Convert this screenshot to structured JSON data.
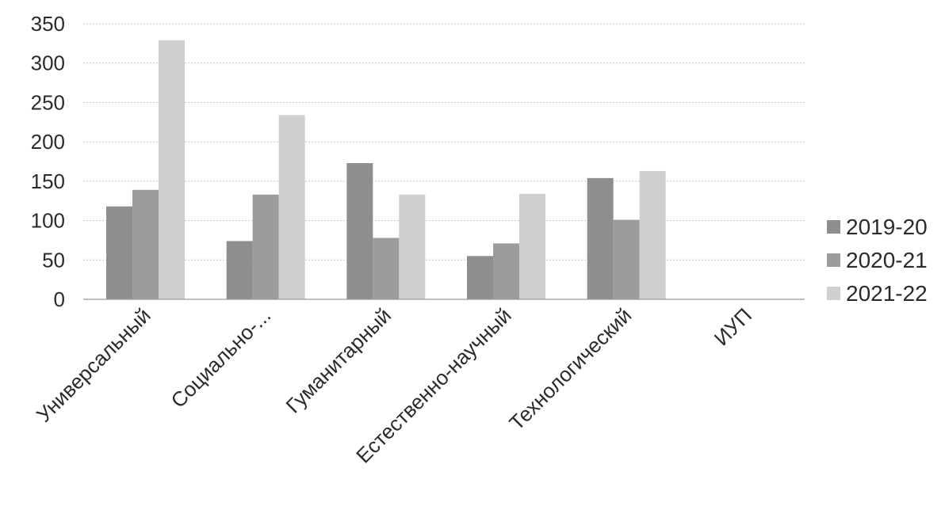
{
  "chart_data": {
    "type": "bar",
    "categories": [
      "Универсальный",
      "Социально-...",
      "Гуманитарный",
      "Естественно-научный",
      "Технологический",
      "ИУП"
    ],
    "series": [
      {
        "name": "2019-20",
        "values": [
          118,
          74,
          173,
          55,
          154,
          0
        ],
        "color": "#8e8e8e"
      },
      {
        "name": "2020-21",
        "values": [
          139,
          133,
          78,
          71,
          101,
          0
        ],
        "color": "#9c9c9c"
      },
      {
        "name": "2021-22",
        "values": [
          329,
          234,
          133,
          134,
          163,
          0
        ],
        "color": "#cfcfcf"
      }
    ],
    "ylim": [
      0,
      350
    ],
    "yticks": [
      0,
      50,
      100,
      150,
      200,
      250,
      300,
      350
    ],
    "grid": true,
    "legend": "right"
  }
}
